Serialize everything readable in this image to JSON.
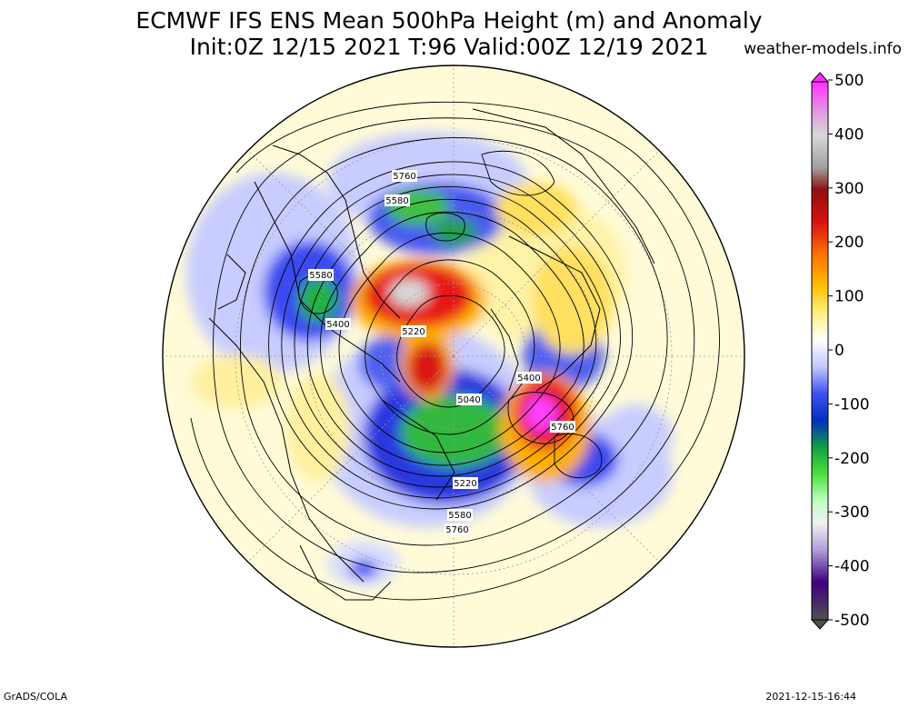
{
  "title": {
    "line1": "ECMWF IFS ENS Mean 500hPa Height (m) and Anomaly",
    "line2": "Init:0Z 12/15 2021  T:96 Valid:00Z 12/19 2021"
  },
  "source_site": "weather-models.info",
  "credit": "GrADS/COLA",
  "timestamp": "2021-12-15-16:44",
  "contour_labels": [
    "5760",
    "5580",
    "5580",
    "5400",
    "5220",
    "5400",
    "5040",
    "5760",
    "5220",
    "5580",
    "5760"
  ],
  "colorbar": {
    "ticks": [
      "500",
      "400",
      "300",
      "200",
      "100",
      "0",
      "-100",
      "-200",
      "-300",
      "-400",
      "-500"
    ],
    "colors": [
      "#ff40ff",
      "#e090e0",
      "#d0d0d0",
      "#a0a0a0",
      "#a01010",
      "#d01010",
      "#f03010",
      "#ff7a00",
      "#ffb000",
      "#ffe040",
      "#fff890",
      "#fffde0",
      "#ffffff",
      "#e0e0ff",
      "#b0b8ff",
      "#7080ff",
      "#2030e0",
      "#0060ff",
      "#20b040",
      "#60e040",
      "#b0ffb0",
      "#f0f0f0",
      "#c0b0e0",
      "#8060c0",
      "#500090",
      "#606060"
    ]
  }
}
